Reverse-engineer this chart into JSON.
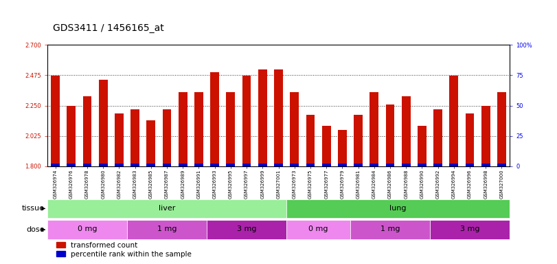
{
  "title": "GDS3411 / 1456165_at",
  "categories": [
    "GSM326974",
    "GSM326976",
    "GSM326978",
    "GSM326980",
    "GSM326982",
    "GSM326983",
    "GSM326985",
    "GSM326987",
    "GSM326989",
    "GSM326991",
    "GSM326993",
    "GSM326995",
    "GSM326997",
    "GSM326999",
    "GSM327001",
    "GSM326973",
    "GSM326975",
    "GSM326977",
    "GSM326979",
    "GSM326981",
    "GSM326984",
    "GSM326986",
    "GSM326988",
    "GSM326990",
    "GSM326992",
    "GSM326994",
    "GSM326996",
    "GSM326998",
    "GSM327000"
  ],
  "red_values": [
    2.47,
    2.25,
    2.32,
    2.44,
    2.19,
    2.22,
    2.14,
    2.22,
    2.35,
    2.35,
    2.5,
    2.35,
    2.47,
    2.52,
    2.52,
    2.35,
    2.18,
    2.1,
    2.07,
    2.18,
    2.35,
    2.26,
    2.32,
    2.1,
    2.22,
    2.47,
    2.19,
    2.25,
    2.35
  ],
  "blue_values": [
    0.018,
    0.018,
    0.018,
    0.018,
    0.018,
    0.018,
    0.018,
    0.018,
    0.018,
    0.018,
    0.018,
    0.018,
    0.018,
    0.018,
    0.018,
    0.018,
    0.018,
    0.018,
    0.018,
    0.018,
    0.018,
    0.018,
    0.018,
    0.018,
    0.018,
    0.018,
    0.018,
    0.018,
    0.018
  ],
  "ylim_left": [
    1.8,
    2.7
  ],
  "yticks_left": [
    1.8,
    2.025,
    2.25,
    2.475,
    2.7
  ],
  "yticks_right": [
    0,
    25,
    50,
    75,
    100
  ],
  "ybase": 1.8,
  "tissue_groups": [
    {
      "label": "liver",
      "start": 0,
      "end": 15,
      "color": "#99EE99"
    },
    {
      "label": "lung",
      "start": 15,
      "end": 29,
      "color": "#55CC55"
    }
  ],
  "dose_groups": [
    {
      "label": "0 mg",
      "start": 0,
      "end": 5,
      "color": "#EE88EE"
    },
    {
      "label": "1 mg",
      "start": 5,
      "end": 10,
      "color": "#CC55CC"
    },
    {
      "label": "3 mg",
      "start": 10,
      "end": 15,
      "color": "#AA22AA"
    },
    {
      "label": "0 mg",
      "start": 15,
      "end": 19,
      "color": "#EE88EE"
    },
    {
      "label": "1 mg",
      "start": 19,
      "end": 24,
      "color": "#CC55CC"
    },
    {
      "label": "3 mg",
      "start": 24,
      "end": 29,
      "color": "#AA22AA"
    }
  ],
  "red_color": "#CC1100",
  "blue_color": "#0000CC",
  "bar_width": 0.55,
  "title_fontsize": 10,
  "tick_fontsize": 6,
  "xtick_fontsize": 5,
  "label_fontsize": 8,
  "legend_fontsize": 7.5,
  "right_axis_color": "#0000EE",
  "left_axis_color": "#CC1100",
  "background_color": "#ffffff"
}
